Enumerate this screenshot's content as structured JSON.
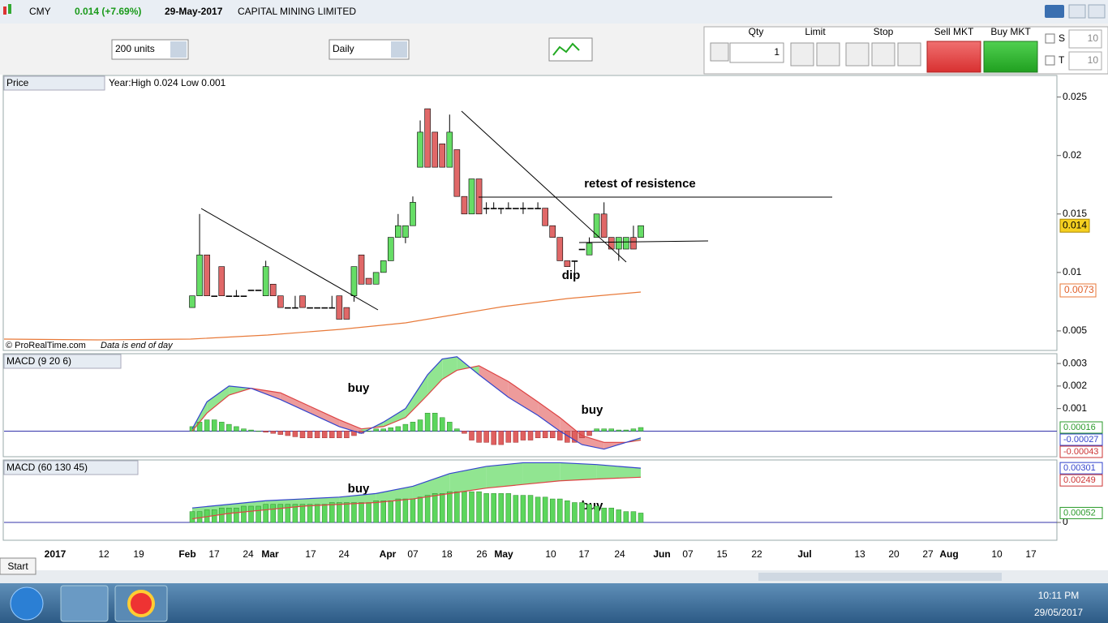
{
  "header": {
    "symbol": "CMY",
    "change": "0.014 (+7.69%)",
    "date": "29-May-2017",
    "name": "CAPITAL MINING LIMITED"
  },
  "toolbar": {
    "units": "200 units",
    "period": "Daily",
    "qty_label": "Qty",
    "qty": "1",
    "limit": "Limit",
    "stop": "Stop",
    "sell": "Sell MKT",
    "buy": "Buy MKT",
    "s": "S",
    "s_value": "10",
    "t": "T",
    "t_value": "10"
  },
  "price": {
    "title": "Price",
    "range": "Year:High 0.024 Low 0.001",
    "credit": "© ProRealTime.com",
    "credit_note": "Data is end of day",
    "ylim": [
      0.0034,
      0.0256
    ],
    "yticks": [
      0.005,
      0.01,
      0.015,
      0.02,
      0.025
    ],
    "last": "0.014",
    "ma_last": "0.0073",
    "annotations": [
      "retest of resistence",
      "dip"
    ],
    "ohlc": [
      [
        0.007,
        0.008,
        0.007,
        0.008
      ],
      [
        0.008,
        0.015,
        0.008,
        0.0115
      ],
      [
        0.0115,
        0.0115,
        0.008,
        0.008
      ],
      [
        0.008,
        0.008,
        0.008,
        0.008
      ],
      [
        0.0105,
        0.0105,
        0.008,
        0.008
      ],
      [
        0.008,
        0.008,
        0.008,
        0.008
      ],
      [
        0.008,
        0.0085,
        0.008,
        0.008
      ],
      [
        0.008,
        0.008,
        0.008,
        0.008
      ],
      [
        0.0085,
        0.0085,
        0.0085,
        0.0085
      ],
      [
        0.0085,
        0.0085,
        0.0085,
        0.0085
      ],
      [
        0.008,
        0.011,
        0.008,
        0.0105
      ],
      [
        0.009,
        0.009,
        0.008,
        0.008
      ],
      [
        0.008,
        0.008,
        0.007,
        0.007
      ],
      [
        0.007,
        0.007,
        0.007,
        0.007
      ],
      [
        0.007,
        0.008,
        0.007,
        0.007
      ],
      [
        0.008,
        0.008,
        0.007,
        0.007
      ],
      [
        0.007,
        0.007,
        0.007,
        0.007
      ],
      [
        0.007,
        0.007,
        0.007,
        0.007
      ],
      [
        0.007,
        0.007,
        0.007,
        0.007
      ],
      [
        0.007,
        0.008,
        0.007,
        0.007
      ],
      [
        0.008,
        0.008,
        0.006,
        0.006
      ],
      [
        0.007,
        0.007,
        0.006,
        0.006
      ],
      [
        0.008,
        0.0105,
        0.0075,
        0.0105
      ],
      [
        0.0115,
        0.0115,
        0.009,
        0.009
      ],
      [
        0.0095,
        0.0095,
        0.009,
        0.009
      ],
      [
        0.009,
        0.01,
        0.009,
        0.01
      ],
      [
        0.01,
        0.011,
        0.01,
        0.011
      ],
      [
        0.011,
        0.013,
        0.011,
        0.013
      ],
      [
        0.013,
        0.015,
        0.013,
        0.014
      ],
      [
        0.013,
        0.014,
        0.0125,
        0.014
      ],
      [
        0.014,
        0.0165,
        0.014,
        0.016
      ],
      [
        0.019,
        0.023,
        0.019,
        0.022
      ],
      [
        0.024,
        0.024,
        0.019,
        0.019
      ],
      [
        0.022,
        0.022,
        0.019,
        0.019
      ],
      [
        0.021,
        0.021,
        0.019,
        0.019
      ],
      [
        0.019,
        0.0235,
        0.019,
        0.022
      ],
      [
        0.0205,
        0.0205,
        0.0165,
        0.0165
      ],
      [
        0.0165,
        0.0165,
        0.015,
        0.015
      ],
      [
        0.015,
        0.018,
        0.015,
        0.018
      ],
      [
        0.018,
        0.018,
        0.015,
        0.015
      ],
      [
        0.0155,
        0.016,
        0.015,
        0.0155
      ],
      [
        0.0155,
        0.016,
        0.0155,
        0.0155
      ],
      [
        0.0155,
        0.0155,
        0.015,
        0.0155
      ],
      [
        0.0155,
        0.016,
        0.0155,
        0.0155
      ],
      [
        0.0155,
        0.0155,
        0.0155,
        0.0155
      ],
      [
        0.0155,
        0.016,
        0.015,
        0.0155
      ],
      [
        0.0155,
        0.0155,
        0.0155,
        0.0155
      ],
      [
        0.0155,
        0.016,
        0.0155,
        0.0155
      ],
      [
        0.0155,
        0.0155,
        0.014,
        0.014
      ],
      [
        0.014,
        0.014,
        0.013,
        0.013
      ],
      [
        0.013,
        0.013,
        0.011,
        0.011
      ],
      [
        0.011,
        0.011,
        0.0105,
        0.0105
      ],
      [
        0.011,
        0.011,
        0.01,
        0.011
      ],
      [
        0.012,
        0.012,
        0.012,
        0.012
      ],
      [
        0.0115,
        0.013,
        0.0115,
        0.0125
      ],
      [
        0.013,
        0.015,
        0.013,
        0.015
      ],
      [
        0.015,
        0.016,
        0.013,
        0.013
      ],
      [
        0.013,
        0.013,
        0.012,
        0.012
      ],
      [
        0.012,
        0.013,
        0.011,
        0.013
      ],
      [
        0.012,
        0.013,
        0.012,
        0.013
      ],
      [
        0.013,
        0.014,
        0.012,
        0.012
      ],
      [
        0.013,
        0.014,
        0.013,
        0.014
      ]
    ]
  },
  "macd1": {
    "title": "MACD (9 20 6)",
    "annotations": [
      "buy",
      "buy"
    ],
    "ylim": [
      -0.0011,
      0.0034
    ],
    "yticks": [
      0.001,
      0.002,
      0.003
    ],
    "hist_label": "0.00016",
    "macd_label": "-0.00027",
    "signal_label": "-0.00043",
    "histogram": [
      0.0002,
      0.0004,
      0.0005,
      0.0005,
      0.0004,
      0.0003,
      0.0002,
      0.0001,
      5e-05,
      0,
      -5e-05,
      -0.0001,
      -0.00015,
      -0.0002,
      -0.00025,
      -0.0003,
      -0.0003,
      -0.0003,
      -0.0003,
      -0.0003,
      -0.0003,
      -0.0003,
      -0.0002,
      -0.0001,
      0,
      0.0001,
      0.0001,
      0.00015,
      0.0002,
      0.0003,
      0.0004,
      0.0005,
      0.0008,
      0.0008,
      0.0006,
      0.0004,
      0.0001,
      -0.0001,
      -0.0004,
      -0.0005,
      -0.0005,
      -0.0006,
      -0.0006,
      -0.0005,
      -0.0005,
      -0.0004,
      -0.0004,
      -0.0003,
      -0.0003,
      -0.0003,
      -0.0004,
      -0.0005,
      -0.0005,
      -0.0003,
      -0.0002,
      0.0001,
      0.0001,
      0.0001,
      5e-05,
      5e-05,
      0.0001,
      0.00016
    ],
    "x": [
      0,
      2,
      5,
      8,
      12,
      16,
      20,
      23,
      26,
      29,
      32,
      34,
      36,
      39,
      43,
      47,
      50,
      53,
      56,
      59,
      61
    ],
    "macd": [
      0.0001,
      0.0013,
      0.002,
      0.0019,
      0.0014,
      0.0008,
      0.0002,
      -0.0001,
      0.0004,
      0.001,
      0.0025,
      0.0032,
      0.0033,
      0.0025,
      0.0015,
      0.0007,
      0,
      -0.0006,
      -0.0008,
      -0.0005,
      -0.0003
    ],
    "signal": [
      0,
      0.0008,
      0.0016,
      0.0019,
      0.0017,
      0.0011,
      0.0005,
      0.0001,
      0.0002,
      0.0006,
      0.0016,
      0.0023,
      0.0027,
      0.0029,
      0.0022,
      0.0013,
      0.0006,
      -0.0002,
      -0.0005,
      -0.0005,
      -0.0004
    ]
  },
  "macd2": {
    "title": "MACD (60 130 45)",
    "annotations": [
      "buy",
      "buy"
    ],
    "ylim": [
      -0.00094,
      0.00341
    ],
    "yticks": [
      0
    ],
    "hist_label": "0.00052",
    "macd_label": "0.00301",
    "signal_label": "0.00249",
    "histogram": [
      0.0006,
      0.0006,
      0.0007,
      0.0007,
      0.0008,
      0.0008,
      0.0008,
      0.0009,
      0.0009,
      0.0009,
      0.001,
      0.001,
      0.001,
      0.001,
      0.001,
      0.001,
      0.001,
      0.001,
      0.001,
      0.0011,
      0.0011,
      0.0011,
      0.0011,
      0.0011,
      0.0011,
      0.0012,
      0.0012,
      0.0012,
      0.0013,
      0.0013,
      0.0013,
      0.0014,
      0.0015,
      0.0016,
      0.0016,
      0.0017,
      0.0017,
      0.0017,
      0.0017,
      0.0017,
      0.0016,
      0.0016,
      0.0016,
      0.0016,
      0.0015,
      0.0015,
      0.0015,
      0.0014,
      0.0014,
      0.0013,
      0.0013,
      0.0012,
      0.0011,
      0.0011,
      0.001,
      0.0009,
      0.0008,
      0.0008,
      0.0007,
      0.0006,
      0.0006,
      0.00052
    ],
    "x": [
      0,
      5,
      10,
      15,
      20,
      25,
      30,
      35,
      40,
      45,
      50,
      55,
      61
    ],
    "macd": [
      0.0008,
      0.001,
      0.0012,
      0.0013,
      0.0014,
      0.0016,
      0.002,
      0.0027,
      0.0031,
      0.0033,
      0.0033,
      0.0032,
      0.003
    ],
    "signal": [
      0.0002,
      0.0005,
      0.0007,
      0.0009,
      0.001,
      0.0011,
      0.0013,
      0.0016,
      0.0019,
      0.0021,
      0.0023,
      0.0024,
      0.0025
    ]
  },
  "dates": [
    "2017",
    "12",
    "19",
    "Feb",
    "17",
    "24",
    "Mar",
    "17",
    "24",
    "Apr",
    "07",
    "18",
    "26",
    "May",
    "10",
    "17",
    "24",
    "Jun",
    "07",
    "15",
    "22",
    "Jul",
    "13",
    "20",
    "27",
    "Aug",
    "10",
    "17"
  ],
  "taskbar": {
    "start": "Start",
    "time": "10:11 PM",
    "date": "29/05/2017"
  }
}
